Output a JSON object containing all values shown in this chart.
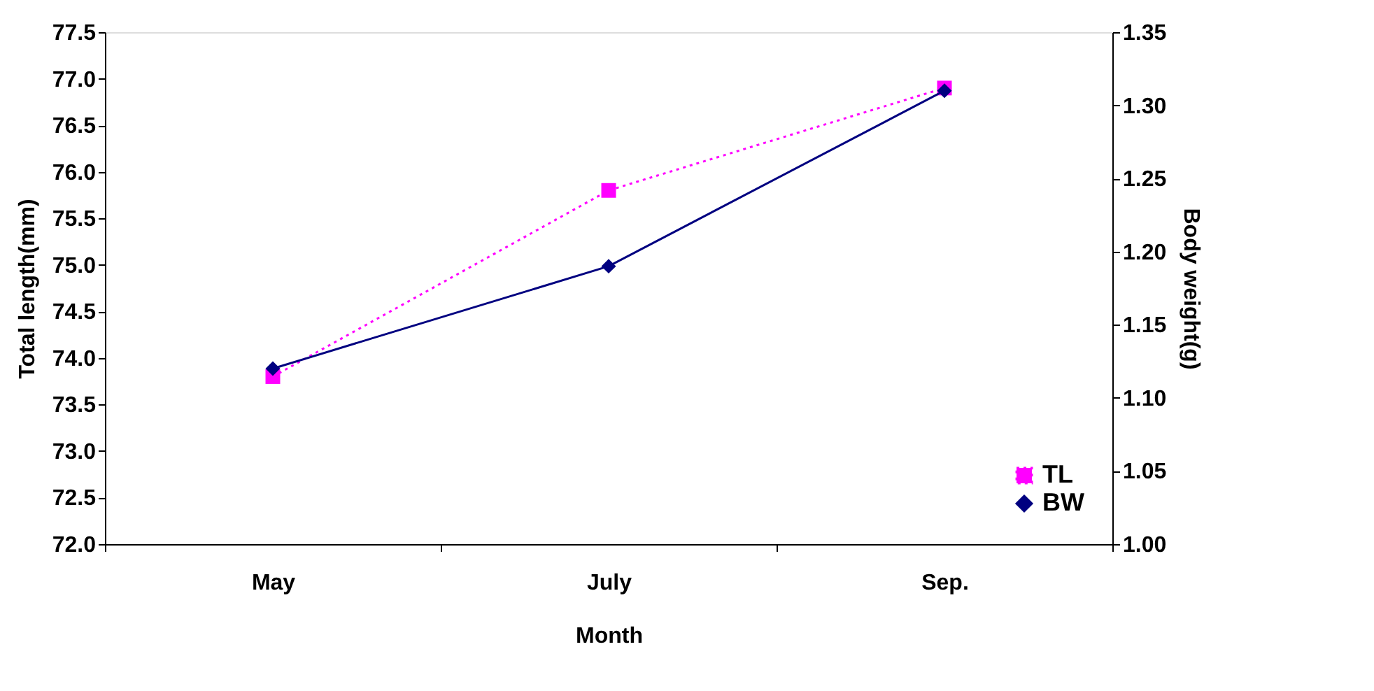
{
  "chart_data": {
    "type": "line",
    "xlabel": "Month",
    "ylabel": "Total length(mm)",
    "y2label": "Body weight(g)",
    "categories": [
      "May",
      "July",
      "Sep."
    ],
    "series": [
      {
        "name": "TL",
        "color": "#ff00ff",
        "values": [
          73.8,
          75.8,
          76.9
        ],
        "marker": "square",
        "line_style": "dotted"
      },
      {
        "name": "BW",
        "color": "#000080",
        "values": [
          1.12,
          1.19,
          1.31
        ],
        "marker": "diamond",
        "line_style": "solid",
        "axis": "y2"
      }
    ],
    "ylim": [
      72.0,
      77.5
    ],
    "yticks": [
      {
        "value": 72,
        "label": "72.0"
      },
      72.5,
      {
        "value": 73,
        "label": "73.0"
      },
      73.5,
      {
        "value": 74,
        "label": "74.0"
      },
      74.5,
      {
        "value": 75,
        "label": "75.0"
      },
      75.5,
      {
        "value": 76,
        "label": "76.0"
      },
      76.5,
      {
        "value": 77,
        "label": "77.0"
      },
      77.5
    ],
    "y2lim": [
      1.0,
      1.35
    ],
    "y2ticks": [
      {
        "value": 1,
        "label": "1.00"
      },
      1.05,
      {
        "value": 1.1,
        "label": "1.10"
      },
      1.15,
      {
        "value": 1.2,
        "label": "1.20"
      },
      1.25,
      {
        "value": 1.3,
        "label": "1.30"
      },
      1.35
    ],
    "grid": false,
    "legend": "bottom right"
  }
}
